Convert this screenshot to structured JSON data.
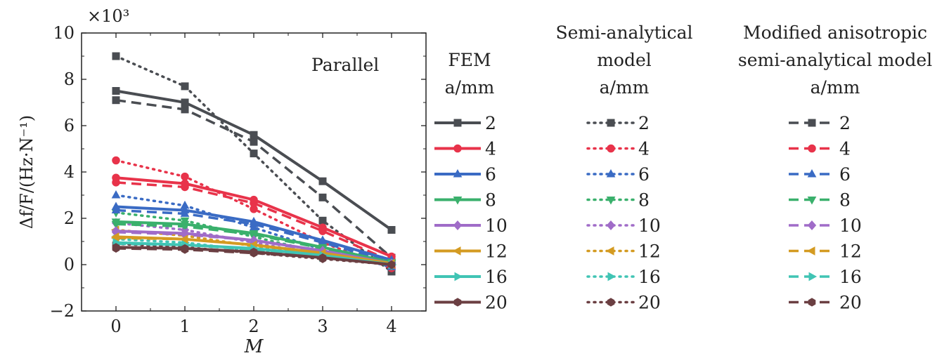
{
  "chart_data": {
    "type": "line",
    "annotation": "Parallel",
    "axis_multiplier": "×10³",
    "xlabel": "M",
    "ylabel": "Δf/F/(Hz·N⁻¹)",
    "x": [
      0,
      1,
      2,
      3,
      4
    ],
    "xlim": [
      -0.5,
      4.5
    ],
    "ylim": [
      -2,
      10
    ],
    "x_ticks": [
      "0",
      "1",
      "2",
      "3",
      "4"
    ],
    "y_ticks": [
      "−2",
      "0",
      "2",
      "4",
      "6",
      "8",
      "10"
    ],
    "grid": false,
    "legend_placement": "right",
    "legend_groups": [
      {
        "heading_lines": [
          "FEM",
          "a/mm"
        ],
        "line_style": "solid"
      },
      {
        "heading_lines": [
          "Semi-analytical",
          "model",
          "a/mm"
        ],
        "line_style": "dotted"
      },
      {
        "heading_lines": [
          "Modified anisotropic",
          "semi-analytical model",
          "a/mm"
        ],
        "line_style": "dashed"
      }
    ],
    "series_styles": [
      {
        "label": "2",
        "color": "#4a4d52",
        "marker": "square"
      },
      {
        "label": "4",
        "color": "#e8334a",
        "marker": "circle"
      },
      {
        "label": "6",
        "color": "#3a6bc4",
        "marker": "triangle-up"
      },
      {
        "label": "8",
        "color": "#3ab06c",
        "marker": "triangle-down"
      },
      {
        "label": "10",
        "color": "#a06cc8",
        "marker": "diamond"
      },
      {
        "label": "12",
        "color": "#d49b22",
        "marker": "triangle-left"
      },
      {
        "label": "16",
        "color": "#40c4b4",
        "marker": "triangle-right"
      },
      {
        "label": "20",
        "color": "#6b3f42",
        "marker": "hexagon"
      }
    ],
    "series": [
      {
        "group": "FEM",
        "a_mm": "2",
        "values": [
          7.5,
          7.0,
          5.6,
          3.6,
          1.5
        ]
      },
      {
        "group": "FEM",
        "a_mm": "4",
        "values": [
          3.75,
          3.5,
          2.8,
          1.6,
          0.35
        ]
      },
      {
        "group": "FEM",
        "a_mm": "6",
        "values": [
          2.5,
          2.35,
          1.85,
          1.05,
          0.2
        ]
      },
      {
        "group": "FEM",
        "a_mm": "8",
        "values": [
          1.85,
          1.75,
          1.35,
          0.75,
          0.1
        ]
      },
      {
        "group": "FEM",
        "a_mm": "10",
        "values": [
          1.45,
          1.35,
          1.05,
          0.6,
          0.05
        ]
      },
      {
        "group": "FEM",
        "a_mm": "12",
        "values": [
          1.2,
          1.1,
          0.85,
          0.5,
          0.05
        ]
      },
      {
        "group": "FEM",
        "a_mm": "16",
        "values": [
          0.95,
          0.85,
          0.7,
          0.4,
          0.0
        ]
      },
      {
        "group": "FEM",
        "a_mm": "20",
        "values": [
          0.75,
          0.7,
          0.55,
          0.3,
          0.0
        ]
      },
      {
        "group": "Semi-analytical model",
        "a_mm": "2",
        "values": [
          9.0,
          7.7,
          4.8,
          1.9,
          -0.3
        ]
      },
      {
        "group": "Semi-analytical model",
        "a_mm": "4",
        "values": [
          4.5,
          3.8,
          2.4,
          0.95,
          -0.15
        ]
      },
      {
        "group": "Semi-analytical model",
        "a_mm": "6",
        "values": [
          3.0,
          2.55,
          1.6,
          0.65,
          -0.1
        ]
      },
      {
        "group": "Semi-analytical model",
        "a_mm": "8",
        "values": [
          2.25,
          1.9,
          1.2,
          0.5,
          -0.05
        ]
      },
      {
        "group": "Semi-analytical model",
        "a_mm": "10",
        "values": [
          1.8,
          1.5,
          0.95,
          0.4,
          0.0
        ]
      },
      {
        "group": "Semi-analytical model",
        "a_mm": "12",
        "values": [
          1.5,
          1.25,
          0.8,
          0.35,
          0.0
        ]
      },
      {
        "group": "Semi-analytical model",
        "a_mm": "16",
        "values": [
          1.1,
          0.95,
          0.6,
          0.3,
          0.0
        ]
      },
      {
        "group": "Semi-analytical model",
        "a_mm": "20",
        "values": [
          0.9,
          0.75,
          0.5,
          0.25,
          0.0
        ]
      },
      {
        "group": "Modified anisotropic semi-analytical model",
        "a_mm": "2",
        "values": [
          7.1,
          6.7,
          5.3,
          2.9,
          0.3
        ]
      },
      {
        "group": "Modified anisotropic semi-analytical model",
        "a_mm": "4",
        "values": [
          3.55,
          3.35,
          2.65,
          1.45,
          0.15
        ]
      },
      {
        "group": "Modified anisotropic semi-analytical model",
        "a_mm": "6",
        "values": [
          2.35,
          2.2,
          1.75,
          0.95,
          0.1
        ]
      },
      {
        "group": "Modified anisotropic semi-analytical model",
        "a_mm": "8",
        "values": [
          1.75,
          1.65,
          1.3,
          0.7,
          0.05
        ]
      },
      {
        "group": "Modified anisotropic semi-analytical model",
        "a_mm": "10",
        "values": [
          1.4,
          1.3,
          1.05,
          0.55,
          0.05
        ]
      },
      {
        "group": "Modified anisotropic semi-analytical model",
        "a_mm": "12",
        "values": [
          1.15,
          1.1,
          0.85,
          0.45,
          0.05
        ]
      },
      {
        "group": "Modified anisotropic semi-analytical model",
        "a_mm": "16",
        "values": [
          0.9,
          0.85,
          0.65,
          0.35,
          0.0
        ]
      },
      {
        "group": "Modified anisotropic semi-analytical model",
        "a_mm": "20",
        "values": [
          0.7,
          0.65,
          0.5,
          0.3,
          0.0
        ]
      }
    ]
  }
}
